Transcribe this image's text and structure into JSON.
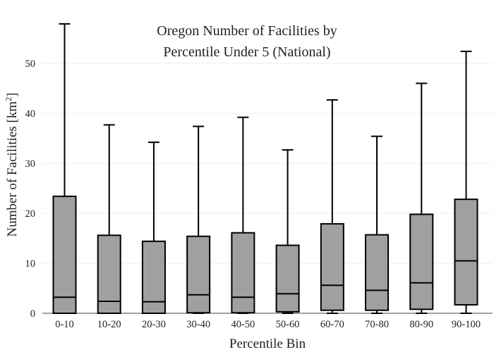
{
  "chart_data": {
    "type": "box",
    "title_lines": [
      "Oregon Number of Facilities by",
      "Percentile Under 5 (National)"
    ],
    "xlabel": "Percentile Bin",
    "ylabel_main": "Number of Facilities  [km",
    "ylabel_sup": "2",
    "ylabel_end": "]",
    "categories": [
      "0-10",
      "10-20",
      "20-30",
      "30-40",
      "40-50",
      "50-60",
      "60-70",
      "70-80",
      "80-90",
      "90-100"
    ],
    "y_ticks": [
      0,
      10,
      20,
      30,
      40,
      50
    ],
    "ylim": [
      0,
      58.5
    ],
    "grid": true,
    "box_color": "#a0a0a0",
    "boxes": [
      {
        "min": 0,
        "q1": 0,
        "median": 3.2,
        "q3": 23.4,
        "max": 57.9
      },
      {
        "min": 0,
        "q1": 0,
        "median": 2.4,
        "q3": 15.6,
        "max": 37.7
      },
      {
        "min": 0,
        "q1": 0,
        "median": 2.3,
        "q3": 14.4,
        "max": 34.2
      },
      {
        "min": 0,
        "q1": 0.1,
        "median": 3.7,
        "q3": 15.4,
        "max": 37.4
      },
      {
        "min": 0,
        "q1": 0.1,
        "median": 3.2,
        "q3": 16.1,
        "max": 39.2
      },
      {
        "min": 0,
        "q1": 0.3,
        "median": 3.9,
        "q3": 13.6,
        "max": 32.7
      },
      {
        "min": 0,
        "q1": 0.6,
        "median": 5.6,
        "q3": 17.9,
        "max": 42.7
      },
      {
        "min": 0,
        "q1": 0.6,
        "median": 4.6,
        "q3": 15.7,
        "max": 35.4
      },
      {
        "min": 0,
        "q1": 0.8,
        "median": 6.1,
        "q3": 19.8,
        "max": 46.0
      },
      {
        "min": 0,
        "q1": 1.7,
        "median": 10.5,
        "q3": 22.8,
        "max": 52.4
      }
    ]
  }
}
